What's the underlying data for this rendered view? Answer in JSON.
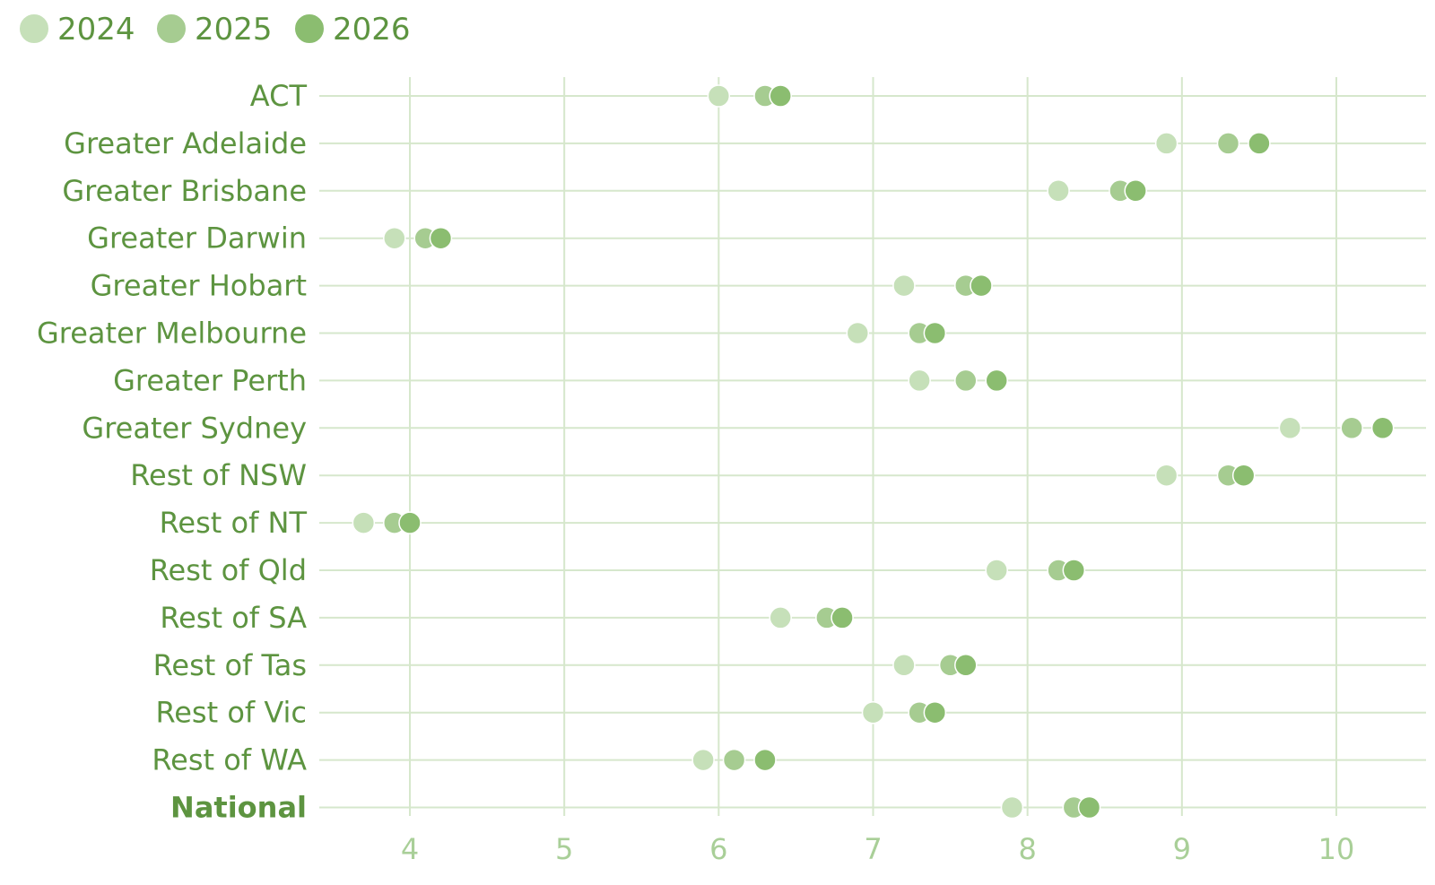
{
  "chart_data": {
    "type": "scatter",
    "title": "",
    "xlabel": "",
    "ylabel": "",
    "xlim": [
      3.4,
      10.6
    ],
    "xticks": [
      4,
      5,
      6,
      7,
      8,
      9,
      10
    ],
    "xtick_labels": [
      "4",
      "5",
      "6",
      "7",
      "8",
      "9",
      "10"
    ],
    "grid": true,
    "legend_position": "top-left",
    "categories": [
      "ACT",
      "Greater Adelaide",
      "Greater Brisbane",
      "Greater Darwin",
      "Greater Hobart",
      "Greater Melbourne",
      "Greater Perth",
      "Greater Sydney",
      "Rest of NSW",
      "Rest of NT",
      "Rest of Qld",
      "Rest of SA",
      "Rest of Tas",
      "Rest of Vic",
      "Rest of WA",
      "National"
    ],
    "emphasized_category": "National",
    "series": [
      {
        "name": "2024",
        "color": "#c6e0b9",
        "values": [
          6.0,
          8.9,
          8.2,
          3.9,
          7.2,
          6.9,
          7.3,
          9.7,
          8.9,
          3.7,
          7.8,
          6.4,
          7.2,
          7.0,
          5.9,
          7.9
        ]
      },
      {
        "name": "2025",
        "color": "#a6cc91",
        "values": [
          6.3,
          9.3,
          8.6,
          4.1,
          7.6,
          7.3,
          7.6,
          10.1,
          9.3,
          3.9,
          8.2,
          6.7,
          7.5,
          7.3,
          6.1,
          8.3
        ]
      },
      {
        "name": "2026",
        "color": "#8bbd70",
        "values": [
          6.4,
          9.5,
          8.7,
          4.2,
          7.7,
          7.4,
          7.8,
          10.3,
          9.4,
          4.0,
          8.3,
          6.8,
          7.6,
          7.4,
          6.3,
          8.4
        ]
      }
    ]
  }
}
